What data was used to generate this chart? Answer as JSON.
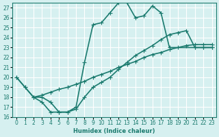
{
  "bg_color": "#d6f0f0",
  "grid_color": "#ffffff",
  "line_color": "#1a7a6e",
  "line_width": 1.2,
  "marker": "+",
  "marker_size": 5,
  "xlabel": "Humidex (Indice chaleur)",
  "xlim": [
    -0.5,
    23.5
  ],
  "ylim": [
    16,
    27.5
  ],
  "yticks": [
    16,
    17,
    18,
    19,
    20,
    21,
    22,
    23,
    24,
    25,
    26,
    27
  ],
  "xticks": [
    0,
    1,
    2,
    3,
    4,
    5,
    6,
    7,
    8,
    9,
    10,
    11,
    12,
    13,
    14,
    15,
    16,
    17,
    18,
    19,
    20,
    21,
    22,
    23
  ],
  "series1_x": [
    0,
    1,
    2,
    3,
    4,
    5,
    6,
    7,
    8,
    9,
    10,
    11,
    12,
    13,
    14,
    15,
    16,
    17,
    18,
    21,
    22,
    23
  ],
  "series1_y": [
    20.0,
    19.0,
    18.0,
    17.5,
    16.5,
    16.5,
    16.5,
    17.0,
    21.5,
    25.3,
    25.5,
    26.5,
    27.5,
    27.5,
    26.0,
    26.2,
    27.2,
    26.5,
    23.0,
    23.0,
    23.0,
    23.0
  ],
  "series2_x": [
    2,
    3,
    4,
    5,
    6,
    7,
    8,
    9,
    10,
    11,
    12,
    13,
    14,
    15,
    16,
    17,
    18,
    19,
    20,
    21,
    22,
    23
  ],
  "series2_y": [
    18.0,
    18.2,
    18.5,
    18.8,
    19.0,
    19.3,
    19.6,
    20.0,
    20.3,
    20.6,
    21.0,
    21.3,
    21.6,
    22.0,
    22.3,
    22.5,
    22.8,
    23.0,
    23.2,
    23.3,
    23.3,
    23.3
  ],
  "series3_x": [
    0,
    1,
    2,
    3,
    4,
    5,
    6,
    7,
    8,
    9,
    10,
    11,
    12,
    13,
    14,
    15,
    16,
    17,
    18,
    19,
    20,
    21,
    22,
    23
  ],
  "series3_y": [
    20.0,
    19.0,
    18.0,
    18.0,
    17.5,
    16.5,
    16.5,
    16.8,
    18.0,
    19.0,
    19.5,
    20.0,
    20.8,
    21.5,
    22.2,
    22.7,
    23.2,
    23.8,
    24.3,
    24.5,
    24.7,
    23.0,
    23.0,
    23.0
  ]
}
